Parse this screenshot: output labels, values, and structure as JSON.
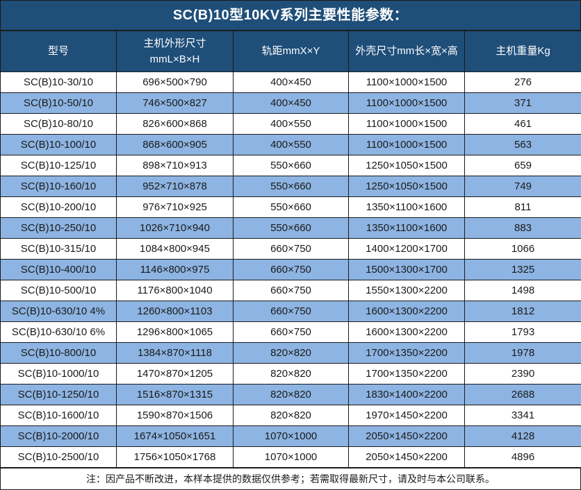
{
  "title": "SC(B)10型10KV系列主要性能参数：",
  "note": "注：因产品不断改进，本样本提供的数据仅供参考；若需取得最新尺寸，请及时与本公司联系。",
  "colors": {
    "header_bg": "#1F4E79",
    "alt_row_bg": "#8DB4E2",
    "row_bg": "#FFFFFF",
    "border": "#1A1A1A",
    "header_text": "#FFFFFF",
    "body_text": "#1A1A1A"
  },
  "table": {
    "headers": [
      {
        "line1": "型号",
        "line2": ""
      },
      {
        "line1": "主机外形尺寸",
        "line2": "mmL×B×H"
      },
      {
        "line1": "轨距mmX×Y",
        "line2": ""
      },
      {
        "line1": "外壳尺寸mm长×宽×高",
        "line2": ""
      },
      {
        "line1": "主机重量Kg",
        "line2": ""
      }
    ],
    "rows": [
      [
        "SC(B)10-30/10",
        "696×500×790",
        "400×450",
        "1100×1000×1500",
        "276"
      ],
      [
        "SC(B)10-50/10",
        "746×500×827",
        "400×450",
        "1100×1000×1500",
        "371"
      ],
      [
        "SC(B)10-80/10",
        "826×600×868",
        "400×550",
        "1100×1000×1500",
        "461"
      ],
      [
        "SC(B)10-100/10",
        "868×600×905",
        "400×550",
        "1100×1000×1500",
        "563"
      ],
      [
        "SC(B)10-125/10",
        "898×710×913",
        "550×660",
        "1250×1050×1500",
        "659"
      ],
      [
        "SC(B)10-160/10",
        "952×710×878",
        "550×660",
        "1250×1050×1500",
        "749"
      ],
      [
        "SC(B)10-200/10",
        "976×710×925",
        "550×660",
        "1350×1100×1600",
        "811"
      ],
      [
        "SC(B)10-250/10",
        "1026×710×940",
        "550×660",
        "1350×1100×1600",
        "883"
      ],
      [
        "SC(B)10-315/10",
        "1084×800×945",
        "660×750",
        "1400×1200×1700",
        "1066"
      ],
      [
        "SC(B)10-400/10",
        "1146×800×975",
        "660×750",
        "1500×1300×1700",
        "1325"
      ],
      [
        "SC(B)10-500/10",
        "1176×800×1040",
        "660×750",
        "1550×1300×2200",
        "1498"
      ],
      [
        "SC(B)10-630/10 4%",
        "1260×800×1103",
        "660×750",
        "1600×1300×2200",
        "1812"
      ],
      [
        "SC(B)10-630/10 6%",
        "1296×800×1065",
        "660×750",
        "1600×1300×2200",
        "1793"
      ],
      [
        "SC(B)10-800/10",
        "1384×870×1118",
        "820×820",
        "1700×1350×2200",
        "1978"
      ],
      [
        "SC(B)10-1000/10",
        "1470×870×1205",
        "820×820",
        "1700×1350×2200",
        "2390"
      ],
      [
        "SC(B)10-1250/10",
        "1516×870×1315",
        "820×820",
        "1830×1400×2200",
        "2688"
      ],
      [
        "SC(B)10-1600/10",
        "1590×870×1506",
        "820×820",
        "1970×1450×2200",
        "3341"
      ],
      [
        "SC(B)10-2000/10",
        "1674×1050×1651",
        "1070×1000",
        "2050×1450×2200",
        "4128"
      ],
      [
        "SC(B)10-2500/10",
        "1756×1050×1768",
        "1070×1000",
        "2050×1450×2200",
        "4896"
      ]
    ]
  }
}
